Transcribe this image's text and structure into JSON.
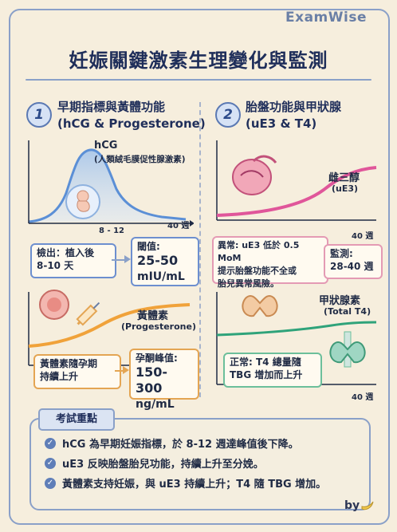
{
  "brand": "ExamWise",
  "title": "妊娠關鍵激素生理變化與監測",
  "sections": [
    {
      "num": "1",
      "title_line1": "早期指標與黃體功能",
      "title_line2": "(hCG & Progesterone)"
    },
    {
      "num": "2",
      "title_line1": "胎盤功能與甲狀腺",
      "title_line2": "(uE3 & T4)"
    }
  ],
  "hcg": {
    "name": "hCG",
    "full_name": "(人類絨毛膜促性腺激素)",
    "x_mark": "8 - 12",
    "x_end": "40 週",
    "detect_box": [
      "檢出：植入後",
      "8-10 天"
    ],
    "threshold_label": "閾值:",
    "threshold_value": [
      "25-50",
      "mIU/mL"
    ]
  },
  "progesterone": {
    "name": "黃體素",
    "full_name": "(Progesterone)",
    "rise_box": [
      "黃體素隨孕期",
      "持續上升"
    ],
    "peak_label": "孕酮峰值:",
    "peak_value": [
      "150-300",
      "ng/mL"
    ]
  },
  "ue3": {
    "name": "雌三醇",
    "full_name": "(uE3)",
    "x_end": "40 週",
    "abnormal_box": [
      "異常: uE3 低於 0.5 MoM",
      "提示胎盤功能不全或",
      "胎兒異常風險。"
    ],
    "abnormal_prefix": "異常:",
    "monitor_label": "監測:",
    "monitor_value": "28-40 週"
  },
  "t4": {
    "name": "甲狀腺素",
    "full_name": "(Total T4)",
    "x_end": "40 週",
    "normal_box": [
      "正常: T4 總量隨",
      "TBG 增加而上升"
    ],
    "normal_prefix": "正常:"
  },
  "summary": {
    "tag": "考試重點",
    "points": [
      "hCG 為早期妊娠指標，於 8-12 週達峰值後下降。",
      "uE3 反映胎盤胎兒功能，持續上升至分娩。",
      "黃體素支持妊娠，與 uE3 持續上升；T4 隨 TBG 增加。"
    ]
  },
  "footer": {
    "by": "by"
  },
  "colors": {
    "hcg_curve": "#5b8fd6",
    "progesterone_curve": "#f0a23a",
    "ue3_curve": "#e0569a",
    "t4_curve": "#2fa37a",
    "frame": "#8aa0c8"
  },
  "icons": [
    "embryo-icon",
    "uterus-icon",
    "syringe-icon",
    "placenta-icon",
    "thyroid-icon",
    "check-icon",
    "banana-icon"
  ]
}
